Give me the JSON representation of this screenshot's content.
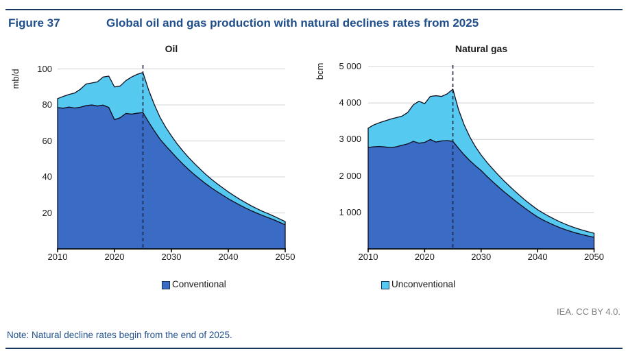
{
  "header": {
    "figure_label": "Figure 37",
    "figure_title": "Global oil and gas production with natural declines rates from 2025"
  },
  "footer": {
    "credit": "IEA. CC BY 4.0.",
    "note": "Note: Natural decline rates begin from the end of 2025."
  },
  "colors": {
    "conventional": "#3a6bc5",
    "unconventional": "#55c9f0",
    "outline": "#101020",
    "grid": "#dcdcdc",
    "axis": "#000000",
    "dashed_line": "#1a2744",
    "navy_text": "#1f4e8c",
    "credit_gray": "#7f7f7f"
  },
  "chart_data": [
    {
      "type": "area",
      "stacked": true,
      "title": "Oil",
      "unit": "mb/d",
      "ylim": [
        0,
        100
      ],
      "y_tick_values": [
        20,
        40,
        60,
        80,
        100
      ],
      "y_tick_labels": [
        "20",
        "40",
        "60",
        "80",
        "100"
      ],
      "x_tick_values": [
        2010,
        2020,
        2030,
        2040,
        2050
      ],
      "x_tick_labels": [
        "2010",
        "2020",
        "2030",
        "2040",
        "2050"
      ],
      "decline_marker_year": 2025,
      "legend": {
        "label": "Conventional",
        "color_key": "conventional"
      },
      "x": [
        2010,
        2011,
        2012,
        2013,
        2014,
        2015,
        2016,
        2017,
        2018,
        2019,
        2020,
        2021,
        2022,
        2023,
        2024,
        2025,
        2026,
        2027,
        2028,
        2029,
        2030,
        2031,
        2032,
        2033,
        2034,
        2035,
        2036,
        2037,
        2038,
        2039,
        2040,
        2041,
        2042,
        2043,
        2044,
        2045,
        2046,
        2047,
        2048,
        2049,
        2050
      ],
      "series": [
        {
          "name": "Conventional",
          "values": [
            78.5,
            78.2,
            78.8,
            78.3,
            78.7,
            79.6,
            80.0,
            79.4,
            79.9,
            78.6,
            71.8,
            72.9,
            75.3,
            74.9,
            75.4,
            75.8,
            70.5,
            65.6,
            61.0,
            57.3,
            53.9,
            50.4,
            47.2,
            44.2,
            41.4,
            38.8,
            36.3,
            34.0,
            31.9,
            29.9,
            27.9,
            26.1,
            24.4,
            22.8,
            21.3,
            19.9,
            18.6,
            17.4,
            16.2,
            14.8,
            13.4
          ]
        },
        {
          "name": "Unconventional",
          "values": [
            5.0,
            6.5,
            7.0,
            8.3,
            10.0,
            12.0,
            12.2,
            13.4,
            15.6,
            17.4,
            18.2,
            17.6,
            18.2,
            20.6,
            21.6,
            22.2,
            17.8,
            14.6,
            12.1,
            10.3,
            8.9,
            8.0,
            7.3,
            6.7,
            6.2,
            5.7,
            5.2,
            4.8,
            4.4,
            4.1,
            3.8,
            3.5,
            3.2,
            3.0,
            2.7,
            2.5,
            2.3,
            2.2,
            2.0,
            1.9,
            1.8
          ]
        }
      ]
    },
    {
      "type": "area",
      "stacked": true,
      "title": "Natural gas",
      "unit": "bcm",
      "ylim": [
        0,
        5000
      ],
      "y_tick_values": [
        1000,
        2000,
        3000,
        4000,
        5000
      ],
      "y_tick_labels": [
        "1 000",
        "2 000",
        "3 000",
        "4 000",
        "5 000"
      ],
      "x_tick_values": [
        2010,
        2020,
        2030,
        2040,
        2050
      ],
      "x_tick_labels": [
        "2010",
        "2020",
        "2030",
        "2040",
        "2050"
      ],
      "decline_marker_year": 2025,
      "legend": {
        "label": "Unconventional",
        "color_key": "unconventional"
      },
      "x": [
        2010,
        2011,
        2012,
        2013,
        2014,
        2015,
        2016,
        2017,
        2018,
        2019,
        2020,
        2021,
        2022,
        2023,
        2024,
        2025,
        2026,
        2027,
        2028,
        2029,
        2030,
        2031,
        2032,
        2033,
        2034,
        2035,
        2036,
        2037,
        2038,
        2039,
        2040,
        2041,
        2042,
        2043,
        2044,
        2045,
        2046,
        2047,
        2048,
        2049,
        2050
      ],
      "series": [
        {
          "name": "Conventional",
          "values": [
            2780,
            2800,
            2810,
            2795,
            2775,
            2800,
            2840,
            2880,
            2950,
            2900,
            2920,
            3000,
            2930,
            2960,
            2970,
            2950,
            2760,
            2580,
            2420,
            2280,
            2150,
            1995,
            1850,
            1710,
            1575,
            1450,
            1325,
            1205,
            1090,
            980,
            875,
            790,
            715,
            645,
            580,
            525,
            475,
            430,
            390,
            353,
            320
          ]
        },
        {
          "name": "Unconventional",
          "values": [
            530,
            600,
            650,
            715,
            785,
            800,
            800,
            860,
            1000,
            1150,
            1060,
            1180,
            1270,
            1220,
            1280,
            1430,
            1060,
            820,
            650,
            520,
            425,
            385,
            352,
            323,
            298,
            275,
            255,
            238,
            222,
            210,
            200,
            190,
            180,
            170,
            159,
            148,
            139,
            130,
            122,
            116,
            110
          ]
        }
      ]
    }
  ]
}
